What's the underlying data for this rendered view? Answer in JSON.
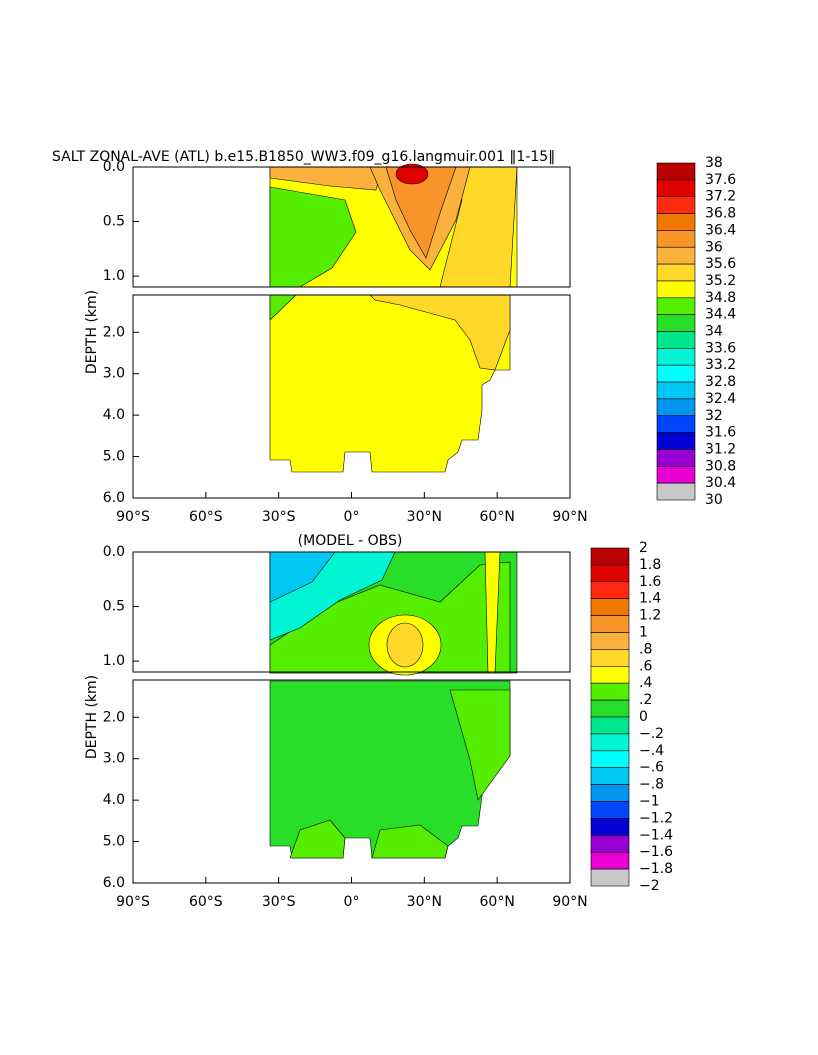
{
  "chart_data": [
    {
      "type": "contour",
      "title": "SALT ZONAL-AVE (ATL) b.e15.B1850_WW3.f09_g16.langmuir.001 ‖1-15‖",
      "ylabel": "DEPTH (km)",
      "xlim": [
        -90,
        90
      ],
      "xticks": [
        {
          "value": -90,
          "label": "90°S"
        },
        {
          "value": -60,
          "label": "60°S"
        },
        {
          "value": -30,
          "label": "30°S"
        },
        {
          "value": 0,
          "label": "0°"
        },
        {
          "value": 30,
          "label": "30°N"
        },
        {
          "value": 60,
          "label": "60°N"
        },
        {
          "value": 90,
          "label": "90°N"
        }
      ],
      "panels": [
        {
          "ylim": [
            0,
            1.1
          ],
          "yticks": [
            {
              "value": 0,
              "label": "0.0"
            },
            0.5,
            {
              "value": 1,
              "label": "1.0"
            }
          ]
        },
        {
          "ylim": [
            1.1,
            6
          ],
          "yticks": [
            {
              "value": 2,
              "label": "2.0"
            },
            {
              "value": 3,
              "label": "3.0"
            },
            {
              "value": 4,
              "label": "4.0"
            },
            {
              "value": 5,
              "label": "5.0"
            },
            {
              "value": 6,
              "label": "6.0"
            }
          ]
        }
      ],
      "colorbar": {
        "ticks": [
          38,
          37.6,
          37.2,
          36.8,
          36.4,
          36,
          35.6,
          35.2,
          34.8,
          34.4,
          34,
          33.6,
          33.2,
          32.8,
          32.4,
          32,
          31.6,
          31.2,
          30.8,
          30.4,
          30
        ],
        "colors": [
          "#b80000",
          "#e00000",
          "#ff2a10",
          "#f07800",
          "#f89428",
          "#fbb23c",
          "#ffd82a",
          "#ffff00",
          "#56ee00",
          "#28de28",
          "#00e68c",
          "#00f5d2",
          "#00ffff",
          "#00c8f5",
          "#0096f0",
          "#0046ff",
          "#0000d2",
          "#9600d2",
          "#e600d2",
          "#c8c8c8",
          "#707070"
        ]
      }
    },
    {
      "type": "contour",
      "title": "(MODEL - OBS)",
      "ylabel": "DEPTH (km)",
      "xlim": [
        -90,
        90
      ],
      "xticks": [
        {
          "value": -90,
          "label": "90°S"
        },
        {
          "value": -60,
          "label": "60°S"
        },
        {
          "value": -30,
          "label": "30°S"
        },
        {
          "value": 0,
          "label": "0°"
        },
        {
          "value": 30,
          "label": "30°N"
        },
        {
          "value": 60,
          "label": "60°N"
        },
        {
          "value": 90,
          "label": "90°N"
        }
      ],
      "panels": [
        {
          "ylim": [
            0,
            1.1
          ],
          "yticks": [
            {
              "value": 0,
              "label": "0.0"
            },
            0.5,
            {
              "value": 1,
              "label": "1.0"
            }
          ]
        },
        {
          "ylim": [
            1.1,
            6
          ],
          "yticks": [
            {
              "value": 2,
              "label": "2.0"
            },
            {
              "value": 3,
              "label": "3.0"
            },
            {
              "value": 4,
              "label": "4.0"
            },
            {
              "value": 5,
              "label": "5.0"
            },
            {
              "value": 6,
              "label": "6.0"
            }
          ]
        }
      ],
      "colorbar": {
        "ticks": [
          2,
          1.8,
          1.6,
          1.4,
          1.2,
          1,
          {
            "value": 0.8,
            "label": ".8"
          },
          {
            "value": 0.6,
            "label": ".6"
          },
          {
            "value": 0.4,
            "label": ".4"
          },
          {
            "value": 0.2,
            "label": ".2"
          },
          0,
          {
            "value": -0.2,
            "label": "−.2"
          },
          {
            "value": -0.4,
            "label": "−.4"
          },
          {
            "value": -0.6,
            "label": "−.6"
          },
          {
            "value": -0.8,
            "label": "−.8"
          },
          {
            "value": -1,
            "label": "−1"
          },
          {
            "value": -1.2,
            "label": "−1.2"
          },
          {
            "value": -1.4,
            "label": "−1.4"
          },
          {
            "value": -1.6,
            "label": "−1.6"
          },
          {
            "value": -1.8,
            "label": "−1.8"
          },
          {
            "value": -2,
            "label": "−2"
          }
        ],
        "colors": [
          "#b80000",
          "#e00000",
          "#ff2a10",
          "#f07800",
          "#f89428",
          "#fbb23c",
          "#ffd82a",
          "#ffff00",
          "#56ee00",
          "#28de28",
          "#00e68c",
          "#00f5d2",
          "#00ffff",
          "#00c8f5",
          "#0096f0",
          "#0046ff",
          "#0000d2",
          "#9600d2",
          "#e600d2",
          "#c8c8c8",
          "#707070"
        ]
      }
    }
  ]
}
